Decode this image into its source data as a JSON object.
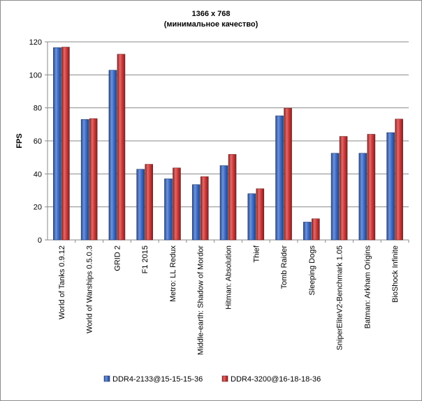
{
  "chart_data": {
    "type": "bar",
    "title": "1366 x 768",
    "subtitle": "(минимальное  качество)",
    "ylabel": "FPS",
    "xlabel": "",
    "ylim": [
      0,
      120
    ],
    "yticks": [
      0,
      20,
      40,
      60,
      80,
      100,
      120
    ],
    "grid": true,
    "legend_position": "bottom",
    "categories": [
      "World of Tanks 0.9.12",
      "World of Warships 0.5.0.3",
      "GRID 2",
      "F1 2015",
      "Metro: LL Redux",
      "Middle-earth: Shadow of Mordor",
      "Hitman: Absolution",
      "Thief",
      "Tomb Raider",
      "Sleeping Dogs",
      "SniperEliteV2-Benchmark 1.05",
      "Batman: Arkham Origins",
      "BioShock Infinite"
    ],
    "series": [
      {
        "name": "DDR4-2133@15-15-15-36",
        "color": "#3f6fce",
        "values": [
          116.5,
          73,
          102.8,
          42.8,
          37,
          33.5,
          45,
          28,
          75.2,
          10.8,
          52.5,
          52.5,
          65
        ]
      },
      {
        "name": "DDR4-3200@16-18-18-36",
        "color": "#d63a3a",
        "values": [
          116.8,
          73.5,
          112.5,
          45.8,
          43.6,
          38.3,
          51.8,
          31,
          79.8,
          12.8,
          62.7,
          64,
          73.2
        ]
      }
    ]
  }
}
